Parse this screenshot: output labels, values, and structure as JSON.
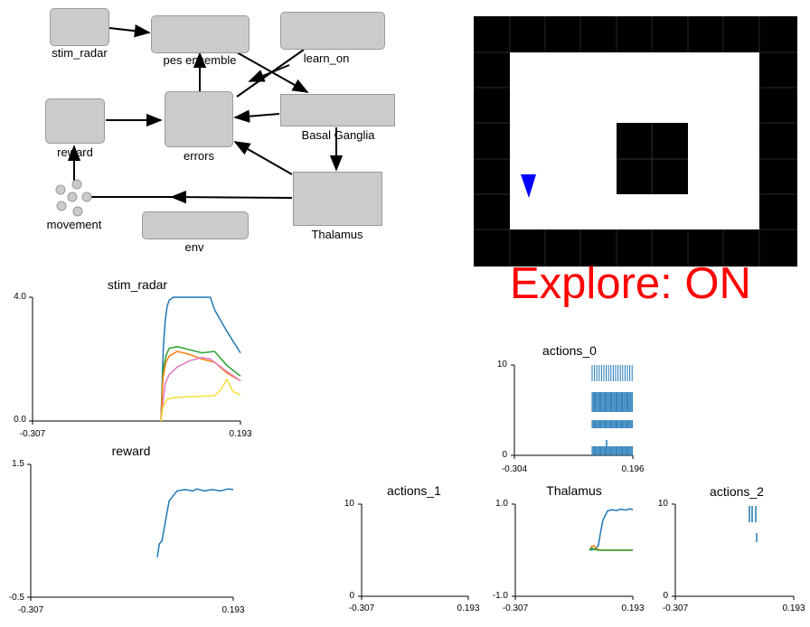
{
  "network": {
    "nodes": {
      "stim_radar": "stim_radar",
      "pes_ensemble": "pes ensemble",
      "learn_on": "learn_on",
      "reward": "reward",
      "errors": "errors",
      "basal_ganglia": "Basal Ganglia",
      "movement": "movement",
      "env": "env",
      "thalamus": "Thalamus"
    }
  },
  "environment": {
    "status_text": "Explore: ON",
    "status_color": "#ff0000",
    "agent_color": "#0000ff",
    "agent_icon": "triangle-agent-icon"
  },
  "plots": {
    "stim_radar": {
      "title": "stim_radar",
      "ymax": "4.0",
      "ymin": "0.0",
      "xmin": "-0.307",
      "xmax": "0.193"
    },
    "reward": {
      "title": "reward",
      "ymax": "1.5",
      "ymin": "-0.5",
      "xmin": "-0.307",
      "xmax": "0.193"
    },
    "actions_0": {
      "title": "actions_0",
      "ymax": "10",
      "ymin": "0",
      "xmin": "-0.304",
      "xmax": "0.196"
    },
    "actions_1": {
      "title": "actions_1",
      "ymax": "10",
      "ymin": "0",
      "xmin": "-0.307",
      "xmax": "0.193"
    },
    "thalamus": {
      "title": "Thalamus",
      "ymax": "1.0",
      "ymin": "-1.0",
      "xmin": "-0.307",
      "xmax": "0.193"
    },
    "actions_2": {
      "title": "actions_2",
      "ymax": "10",
      "ymin": "0",
      "xmin": "-0.307",
      "xmax": "0.193"
    }
  },
  "colors": {
    "blue": "#1f77b4",
    "green": "#2ca02c",
    "orange": "#ff7f0e",
    "pink": "#e377c2",
    "yellow": "#f5e03a"
  },
  "chart_data": [
    {
      "type": "line",
      "title": "stim_radar",
      "xlim": [
        -0.307,
        0.193
      ],
      "ylim": [
        0.0,
        4.0
      ],
      "series": [
        {
          "color": "#1f77b4",
          "x": [
            0.0,
            0.003,
            0.006,
            0.01,
            0.015,
            0.02,
            0.03,
            0.06,
            0.09,
            0.12,
            0.13,
            0.16,
            0.193
          ],
          "y": [
            0.0,
            1.2,
            2.4,
            3.2,
            3.7,
            3.9,
            4.0,
            4.0,
            4.0,
            4.0,
            3.6,
            2.9,
            2.2
          ]
        },
        {
          "color": "#2ca02c",
          "x": [
            0.0,
            0.005,
            0.012,
            0.02,
            0.04,
            0.07,
            0.1,
            0.13,
            0.16,
            0.193
          ],
          "y": [
            0.0,
            1.6,
            2.1,
            2.35,
            2.4,
            2.3,
            2.2,
            2.25,
            1.8,
            1.45
          ]
        },
        {
          "color": "#ff7f0e",
          "x": [
            0.0,
            0.005,
            0.012,
            0.02,
            0.04,
            0.07,
            0.1,
            0.13,
            0.16,
            0.193
          ],
          "y": [
            0.0,
            1.4,
            1.9,
            2.1,
            2.25,
            2.15,
            2.0,
            1.9,
            1.55,
            1.3
          ]
        },
        {
          "color": "#e377c2",
          "x": [
            0.0,
            0.01,
            0.02,
            0.04,
            0.07,
            0.1,
            0.12,
            0.16,
            0.193
          ],
          "y": [
            0.0,
            1.2,
            1.5,
            1.75,
            1.95,
            2.05,
            2.0,
            1.6,
            1.3
          ]
        },
        {
          "color": "#f5e03a",
          "x": [
            0.0,
            0.005,
            0.015,
            0.03,
            0.06,
            0.1,
            0.13,
            0.145,
            0.16,
            0.175,
            0.193
          ],
          "y": [
            0.0,
            0.45,
            0.7,
            0.75,
            0.78,
            0.8,
            0.82,
            1.0,
            1.35,
            0.95,
            0.85
          ]
        }
      ]
    },
    {
      "type": "line",
      "title": "reward",
      "xlim": [
        -0.307,
        0.193
      ],
      "ylim": [
        -0.5,
        1.5
      ],
      "series": [
        {
          "color": "#1f77b4",
          "x": [
            0.0,
            0.005,
            0.012,
            0.02,
            0.03,
            0.05,
            0.07,
            0.09,
            0.1,
            0.12,
            0.14,
            0.16,
            0.18,
            0.193
          ],
          "y": [
            0.1,
            0.3,
            0.35,
            0.62,
            0.95,
            1.1,
            1.12,
            1.1,
            1.13,
            1.1,
            1.12,
            1.1,
            1.13,
            1.12
          ]
        }
      ]
    },
    {
      "type": "scatter",
      "title": "actions_0",
      "xlim": [
        -0.304,
        0.196
      ],
      "ylim": [
        0,
        10
      ],
      "series": [
        {
          "color": "#1f77b4",
          "name": "",
          "x": [
            0.01,
            0.02,
            0.03,
            0.04,
            0.05,
            0.06,
            0.07,
            0.08,
            0.09,
            0.1,
            0.11,
            0.12,
            0.13,
            0.14,
            0.15,
            0.16,
            0.17,
            0.18,
            0.19
          ],
          "y": [
            1,
            1,
            1,
            1,
            1,
            1,
            1,
            1,
            1,
            1,
            1,
            1,
            1,
            1,
            1,
            1,
            1,
            1,
            1
          ]
        }
      ]
    },
    {
      "type": "line",
      "title": "actions_1",
      "xlim": [
        -0.307,
        0.193
      ],
      "ylim": [
        0,
        10
      ],
      "series": []
    },
    {
      "type": "line",
      "title": "Thalamus",
      "xlim": [
        -0.307,
        0.193
      ],
      "ylim": [
        -1.0,
        1.0
      ],
      "series": [
        {
          "color": "#1f77b4",
          "x": [
            0.0,
            0.01,
            0.02,
            0.03,
            0.04,
            0.05,
            0.06,
            0.08,
            0.1,
            0.12,
            0.14,
            0.16,
            0.18,
            0.193
          ],
          "y": [
            0.0,
            0.01,
            0.02,
            0.05,
            0.1,
            0.4,
            0.65,
            0.85,
            0.88,
            0.86,
            0.89,
            0.87,
            0.9,
            0.88
          ]
        },
        {
          "color": "#ff7f0e",
          "x": [
            0.0,
            0.01,
            0.02,
            0.03,
            0.05,
            0.07,
            0.1,
            0.15,
            0.193
          ],
          "y": [
            0.0,
            0.08,
            0.1,
            0.03,
            0.0,
            0.0,
            0.0,
            0.0,
            0.0
          ]
        },
        {
          "color": "#2ca02c",
          "x": [
            0.0,
            0.01,
            0.02,
            0.04,
            0.06,
            0.1,
            0.15,
            0.193
          ],
          "y": [
            0.0,
            0.05,
            0.02,
            0.0,
            0.0,
            0.0,
            0.0,
            0.0
          ]
        }
      ]
    },
    {
      "type": "scatter",
      "title": "actions_2",
      "xlim": [
        -0.307,
        0.193
      ],
      "ylim": [
        0,
        10
      ],
      "series": []
    }
  ]
}
